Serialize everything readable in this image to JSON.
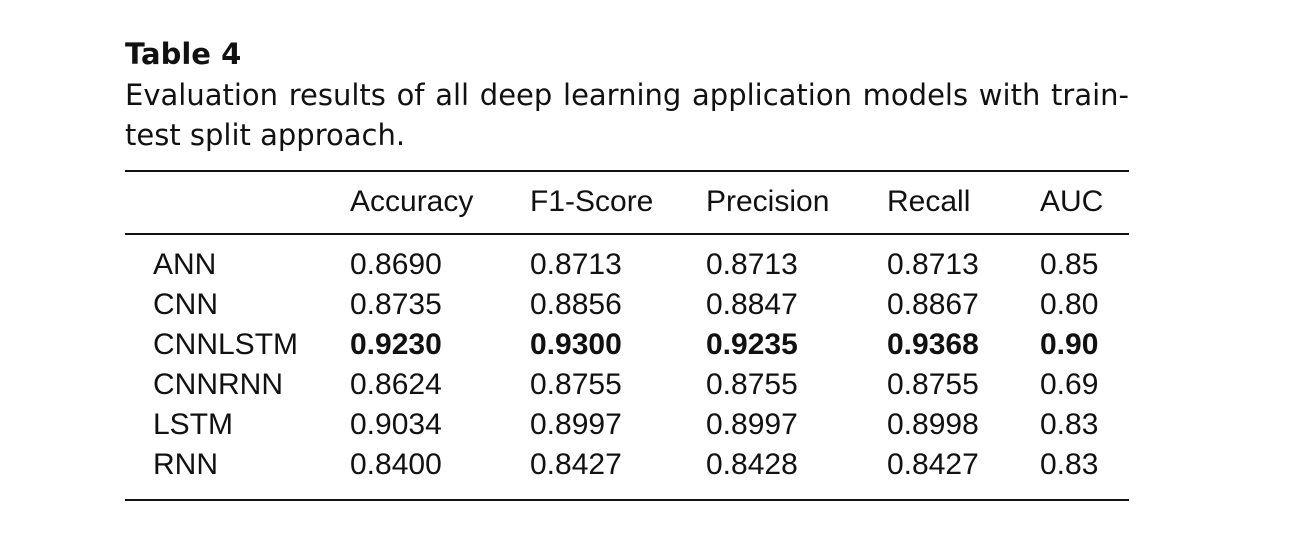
{
  "table_label": "Table 4",
  "caption": "Evaluation results of all deep learning application models with train-test split approach.",
  "columns": [
    "Accuracy",
    "F1-Score",
    "Precision",
    "Recall",
    "AUC"
  ],
  "rows": [
    {
      "model": "ANN",
      "values": [
        "0.8690",
        "0.8713",
        "0.8713",
        "0.8713",
        "0.85"
      ],
      "bold": false
    },
    {
      "model": "CNN",
      "values": [
        "0.8735",
        "0.8856",
        "0.8847",
        "0.8867",
        "0.80"
      ],
      "bold": false
    },
    {
      "model": "CNNLSTM",
      "values": [
        "0.9230",
        "0.9300",
        "0.9235",
        "0.9368",
        "0.90"
      ],
      "bold": true
    },
    {
      "model": "CNNRNN",
      "values": [
        "0.8624",
        "0.8755",
        "0.8755",
        "0.8755",
        "0.69"
      ],
      "bold": false
    },
    {
      "model": "LSTM",
      "values": [
        "0.9034",
        "0.8997",
        "0.8997",
        "0.8998",
        "0.83"
      ],
      "bold": false
    },
    {
      "model": "RNN",
      "values": [
        "0.8400",
        "0.8427",
        "0.8428",
        "0.8427",
        "0.83"
      ],
      "bold": false
    }
  ]
}
